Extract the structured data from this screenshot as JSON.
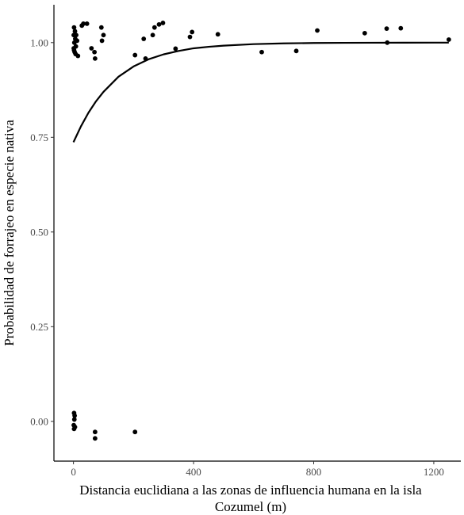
{
  "chart_data": {
    "type": "scatter",
    "title": "",
    "xlabel": "Distancia euclidiana a las zonas de influencia humana en la isla Cozumel (m)",
    "xlabel_lines": [
      "Distancia euclidiana a las zonas de influencia humana en la isla",
      "Cozumel (m)"
    ],
    "ylabel": "Probabilidad de forrajeo en especie nativa",
    "xlim": [
      -65,
      1290
    ],
    "ylim": [
      -0.105,
      1.1
    ],
    "x_ticks": [
      0,
      400,
      800,
      1200
    ],
    "x_tick_labels": [
      "0",
      "400",
      "800",
      "1200"
    ],
    "y_ticks": [
      0,
      0.25,
      0.5,
      0.75,
      1.0
    ],
    "y_tick_labels": [
      "0.00",
      "0.25",
      "0.50",
      "0.75",
      "1.00"
    ],
    "grid": false,
    "point_color": "#000000",
    "line_color": "#000000",
    "points": [
      {
        "x": 2,
        "y": 1.04
      },
      {
        "x": 5,
        "y": 1.03
      },
      {
        "x": 1,
        "y": 1.02
      },
      {
        "x": 6,
        "y": 1.01
      },
      {
        "x": 3,
        "y": 1.0
      },
      {
        "x": 8,
        "y": 0.99
      },
      {
        "x": 2,
        "y": 0.98
      },
      {
        "x": 4,
        "y": 0.975
      },
      {
        "x": 7,
        "y": 0.97
      },
      {
        "x": 1,
        "y": 0.985
      },
      {
        "x": 9,
        "y": 1.02
      },
      {
        "x": 12,
        "y": 1.005
      },
      {
        "x": 15,
        "y": 0.965
      },
      {
        "x": 28,
        "y": 1.045
      },
      {
        "x": 33,
        "y": 1.05
      },
      {
        "x": 45,
        "y": 1.05
      },
      {
        "x": 60,
        "y": 0.985
      },
      {
        "x": 70,
        "y": 0.975
      },
      {
        "x": 72,
        "y": 0.958
      },
      {
        "x": 93,
        "y": 1.04
      },
      {
        "x": 95,
        "y": 1.005
      },
      {
        "x": 100,
        "y": 1.02
      },
      {
        "x": 205,
        "y": 0.967
      },
      {
        "x": 234,
        "y": 1.01
      },
      {
        "x": 240,
        "y": 0.958
      },
      {
        "x": 264,
        "y": 1.02
      },
      {
        "x": 270,
        "y": 1.04
      },
      {
        "x": 285,
        "y": 1.048
      },
      {
        "x": 298,
        "y": 1.052
      },
      {
        "x": 340,
        "y": 0.984
      },
      {
        "x": 388,
        "y": 1.015
      },
      {
        "x": 395,
        "y": 1.028
      },
      {
        "x": 481,
        "y": 1.022
      },
      {
        "x": 627,
        "y": 0.975
      },
      {
        "x": 742,
        "y": 0.978
      },
      {
        "x": 812,
        "y": 1.032
      },
      {
        "x": 970,
        "y": 1.025
      },
      {
        "x": 1043,
        "y": 1.037
      },
      {
        "x": 1045,
        "y": 1.0
      },
      {
        "x": 1090,
        "y": 1.038
      },
      {
        "x": 1250,
        "y": 1.008
      },
      {
        "x": 2,
        "y": 0.022
      },
      {
        "x": 4,
        "y": 0.015
      },
      {
        "x": 3,
        "y": 0.005
      },
      {
        "x": 1,
        "y": -0.01
      },
      {
        "x": 5,
        "y": -0.015
      },
      {
        "x": 2,
        "y": -0.02
      },
      {
        "x": 72,
        "y": -0.028
      },
      {
        "x": 72,
        "y": -0.045
      },
      {
        "x": 205,
        "y": -0.028
      }
    ],
    "fit_curve": {
      "x": [
        0,
        25,
        50,
        75,
        100,
        150,
        200,
        250,
        300,
        350,
        400,
        450,
        500,
        600,
        700,
        800,
        900,
        1000,
        1100,
        1200,
        1250
      ],
      "y": [
        0.737,
        0.779,
        0.815,
        0.845,
        0.87,
        0.91,
        0.937,
        0.956,
        0.969,
        0.978,
        0.985,
        0.989,
        0.992,
        0.996,
        0.998,
        0.999,
        0.9995,
        0.9997,
        0.9999,
        0.99995,
        0.99997
      ]
    }
  }
}
